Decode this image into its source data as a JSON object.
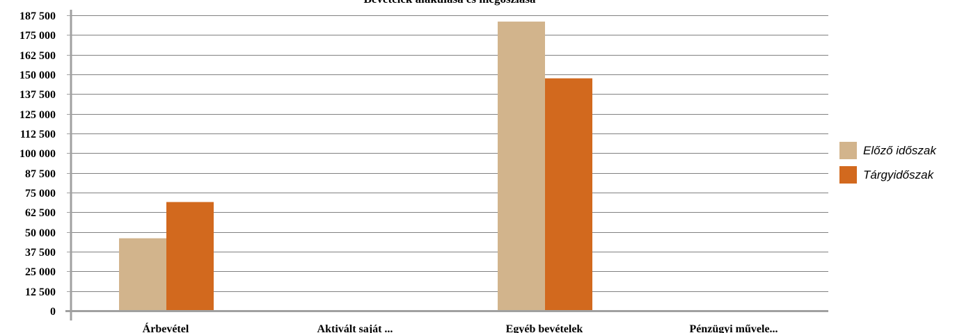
{
  "chart_data": {
    "type": "bar",
    "title": "Bevételek alakulása és megoszlása",
    "categories": [
      "Árbevétel",
      "Aktivált saját ...",
      "Egyéb bevételek",
      "Pénzügyi művele..."
    ],
    "series": [
      {
        "name": "Előző időszak",
        "color": "#d2b48c",
        "values": [
          46000,
          0,
          183500,
          0
        ]
      },
      {
        "name": "Tárgyidőszak",
        "color": "#d2691e",
        "values": [
          69000,
          0,
          147500,
          0
        ]
      }
    ],
    "ylim": [
      0,
      187500
    ],
    "yticks": [
      0,
      12500,
      25000,
      37500,
      50000,
      62500,
      75000,
      87500,
      100000,
      112500,
      125000,
      137500,
      150000,
      162500,
      175000,
      187500
    ],
    "ytick_labels": [
      "0",
      "12 500",
      "25 000",
      "37 500",
      "50 000",
      "62 500",
      "75 000",
      "87 500",
      "100 000",
      "112 500",
      "125 000",
      "137 500",
      "150 000",
      "162 500",
      "175 000",
      "187 500"
    ],
    "grid": true,
    "legend_position": "right"
  }
}
